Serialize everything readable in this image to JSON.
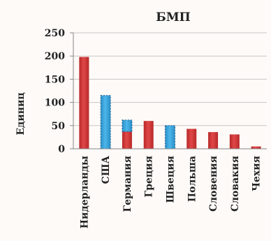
{
  "chart_data": {
    "type": "bar",
    "title": "БМП",
    "ylabel": "Единиц",
    "xlabel": "",
    "ylim": [
      0,
      250
    ],
    "yticks": [
      0,
      50,
      100,
      150,
      200,
      250
    ],
    "grid": true,
    "categories": [
      "Нидерланды",
      "США",
      "Германия",
      "Греция",
      "Швеция",
      "Польша",
      "Словения",
      "Словакия",
      "Чехия"
    ],
    "series": [
      {
        "values": [
          198,
          0,
          37,
          60,
          0,
          43,
          36,
          31,
          5
        ],
        "color": "#d93a3a",
        "pattern": "solid"
      },
      {
        "values": [
          0,
          115,
          25,
          0,
          50,
          0,
          0,
          0,
          0
        ],
        "color": "#3aa6dd",
        "pattern": "dotted"
      }
    ]
  }
}
